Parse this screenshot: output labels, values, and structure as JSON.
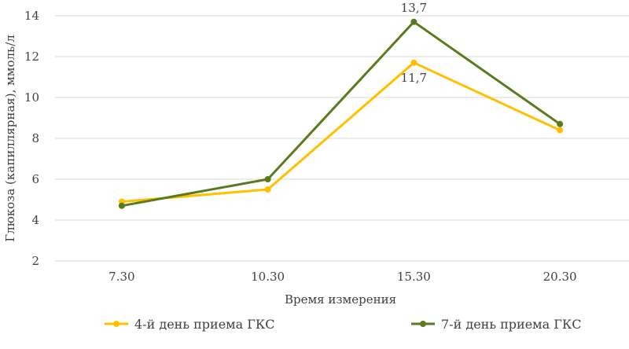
{
  "chart_data": {
    "type": "line",
    "categories": [
      "7.30",
      "10.30",
      "15.30",
      "20.30"
    ],
    "series": [
      {
        "name": "4-й день приема ГКС",
        "values": [
          4.9,
          5.5,
          11.7,
          8.4
        ],
        "color": "#ffc000"
      },
      {
        "name": "7-й день приема ГКС",
        "values": [
          4.7,
          6.0,
          13.7,
          8.7
        ],
        "color": "#5a7a1e"
      }
    ],
    "annotations": [
      {
        "text": "13,7",
        "series": 1,
        "index": 2,
        "placement": "above"
      },
      {
        "text": "11,7",
        "series": 0,
        "index": 2,
        "placement": "below"
      }
    ],
    "title": "",
    "xlabel": "Время измерения",
    "ylabel": "Глюкоза (капиллярная), ммоль/л",
    "ylim": [
      2,
      14
    ],
    "yticks": [
      2,
      4,
      6,
      8,
      10,
      12,
      14
    ],
    "grid": true,
    "legend_position": "bottom"
  }
}
